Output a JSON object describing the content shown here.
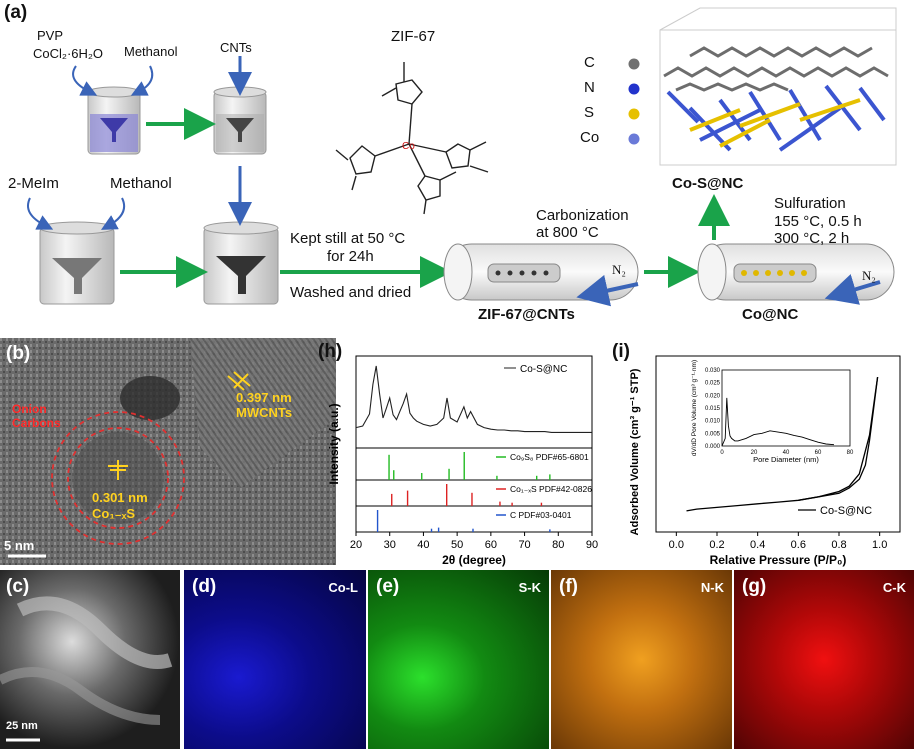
{
  "panel_a": {
    "label": "(a)",
    "reagents1": [
      "PVP",
      "CoCl₂·6H₂O"
    ],
    "methanol1": "Methanol",
    "cnts": "CNTs",
    "zif_title": "ZIF-67",
    "meim": "2-MeIm",
    "methanol2": "Methanol",
    "kept_still": "Kept still at 50 °C",
    "for_24h": "for 24h",
    "washed": "Washed and dried",
    "carbonization": "Carbonization",
    "at_800": "at 800 °C",
    "n2_a": "N₂",
    "n2_b": "N₂",
    "zif_cnts": "ZIF-67@CNTs",
    "co_nc": "Co@NC",
    "co_s_nc": "Co-S@NC",
    "sulfuration": "Sulfuration",
    "s_cond1": "155 °C, 0.5 h",
    "s_cond2": "300 °C, 2 h",
    "legend": [
      {
        "sym": "C",
        "color": "#707070"
      },
      {
        "sym": "N",
        "color": "#2233cc"
      },
      {
        "sym": "S",
        "color": "#e6c000"
      },
      {
        "sym": "Co",
        "color": "#6a7ad8"
      }
    ],
    "co_atom": "Co"
  },
  "panel_b": {
    "label": "(b)",
    "onion": "Onion",
    "carbons": "Carbons",
    "d1": "0.397 nm",
    "mwcnts": "MWCNTs",
    "d2": "0.301 nm",
    "phase": "Co₁₋ₓS",
    "scale": "5 nm"
  },
  "panel_c": {
    "label": "(c)",
    "scale": "25 nm"
  },
  "panel_d": {
    "label": "(d)",
    "element": "Co-L"
  },
  "panel_e": {
    "label": "(e)",
    "element": "S-K"
  },
  "panel_f": {
    "label": "(f)",
    "element": "N-K"
  },
  "panel_g": {
    "label": "(g)",
    "element": "C-K"
  },
  "chart_data": [
    {
      "type": "line",
      "panel": "(h)",
      "xlabel": "2θ (degree)",
      "ylabel": "Intensity (a.u.)",
      "xlim": [
        20,
        90
      ],
      "xticks": [
        "20",
        "30",
        "40",
        "50",
        "60",
        "70",
        "80",
        "90"
      ],
      "series": [
        {
          "name": "Co-S@NC",
          "color": "#222222",
          "x": [
            20,
            22,
            24,
            25,
            26,
            27,
            28,
            29,
            30,
            31,
            32,
            33,
            34,
            35,
            36,
            37,
            38,
            40,
            42,
            44,
            46,
            47,
            48,
            50,
            52,
            53,
            54,
            56,
            58,
            60,
            62,
            64,
            66,
            68,
            70,
            72,
            74,
            76,
            78,
            80,
            82,
            84,
            86,
            88,
            90
          ],
          "y": [
            0.18,
            0.2,
            0.35,
            0.72,
            0.95,
            0.6,
            0.3,
            0.42,
            0.55,
            0.34,
            0.28,
            0.38,
            0.48,
            0.6,
            0.36,
            0.3,
            0.26,
            0.22,
            0.2,
            0.22,
            0.3,
            0.55,
            0.3,
            0.25,
            0.44,
            0.3,
            0.38,
            0.22,
            0.18,
            0.16,
            0.15,
            0.15,
            0.14,
            0.14,
            0.13,
            0.13,
            0.13,
            0.13,
            0.12,
            0.12,
            0.12,
            0.12,
            0.12,
            0.12,
            0.12
          ]
        }
      ],
      "references": [
        {
          "name": "Co₉S₈ PDF#65-6801",
          "color": "#22bb22",
          "peaks": [
            {
              "x": 29.8,
              "h": 0.9
            },
            {
              "x": 31.2,
              "h": 0.35
            },
            {
              "x": 39.5,
              "h": 0.25
            },
            {
              "x": 47.6,
              "h": 0.4
            },
            {
              "x": 52.1,
              "h": 1.0
            },
            {
              "x": 61.8,
              "h": 0.15
            },
            {
              "x": 73.6,
              "h": 0.15
            },
            {
              "x": 77.5,
              "h": 0.2
            }
          ]
        },
        {
          "name": "Co₁₋ₓS PDF#42-0826",
          "color": "#dd2222",
          "peaks": [
            {
              "x": 30.6,
              "h": 0.55
            },
            {
              "x": 35.3,
              "h": 0.7
            },
            {
              "x": 46.9,
              "h": 1.0
            },
            {
              "x": 54.4,
              "h": 0.6
            },
            {
              "x": 62.7,
              "h": 0.2
            },
            {
              "x": 66.3,
              "h": 0.15
            },
            {
              "x": 75.0,
              "h": 0.15
            }
          ]
        },
        {
          "name": "C PDF#03-0401",
          "color": "#2255cc",
          "peaks": [
            {
              "x": 26.4,
              "h": 1.0
            },
            {
              "x": 42.4,
              "h": 0.15
            },
            {
              "x": 44.5,
              "h": 0.2
            },
            {
              "x": 54.7,
              "h": 0.15
            },
            {
              "x": 77.5,
              "h": 0.12
            }
          ]
        }
      ]
    },
    {
      "type": "line",
      "panel": "(i)",
      "xlabel": "Relative Pressure (P/P₀)",
      "ylabel": "Adsorbed Volume (cm³ g⁻¹ STP)",
      "xlim": [
        -0.1,
        1.1
      ],
      "xticks": [
        "0.0",
        "0.2",
        "0.4",
        "0.6",
        "0.8",
        "1.0"
      ],
      "series": [
        {
          "name": "Co-S@NC",
          "color": "#000000",
          "x": [
            0.05,
            0.1,
            0.2,
            0.3,
            0.4,
            0.5,
            0.6,
            0.7,
            0.8,
            0.85,
            0.9,
            0.95,
            0.98,
            0.99
          ],
          "y": [
            0.12,
            0.13,
            0.14,
            0.15,
            0.16,
            0.17,
            0.18,
            0.2,
            0.23,
            0.26,
            0.33,
            0.55,
            0.8,
            0.88
          ]
        },
        {
          "name": "desorption",
          "color": "#000000",
          "x": [
            0.99,
            0.97,
            0.95,
            0.93,
            0.9,
            0.85,
            0.8,
            0.7,
            0.6
          ],
          "y": [
            0.88,
            0.7,
            0.52,
            0.38,
            0.3,
            0.25,
            0.22,
            0.2,
            0.18
          ]
        }
      ],
      "inset": {
        "xlabel": "Pore Diameter (nm)",
        "ylabel": "dV/dD Pore Volume (cm³ g⁻¹·nm)",
        "xticks": [
          "0",
          "20",
          "40",
          "60",
          "80"
        ],
        "yticks": [
          "0.000",
          "0.005",
          "0.010",
          "0.015",
          "0.020",
          "0.025",
          "0.030"
        ],
        "x": [
          0,
          2,
          3,
          4,
          5,
          6,
          8,
          10,
          15,
          20,
          25,
          30,
          35,
          40,
          45,
          50,
          55,
          60,
          65,
          70
        ],
        "y": [
          0,
          0.003,
          0.019,
          0.008,
          0.004,
          0.003,
          0.002,
          0.002,
          0.003,
          0.0045,
          0.005,
          0.006,
          0.0055,
          0.005,
          0.0042,
          0.0035,
          0.0025,
          0.0015,
          0.0008,
          0.0005
        ]
      }
    }
  ]
}
